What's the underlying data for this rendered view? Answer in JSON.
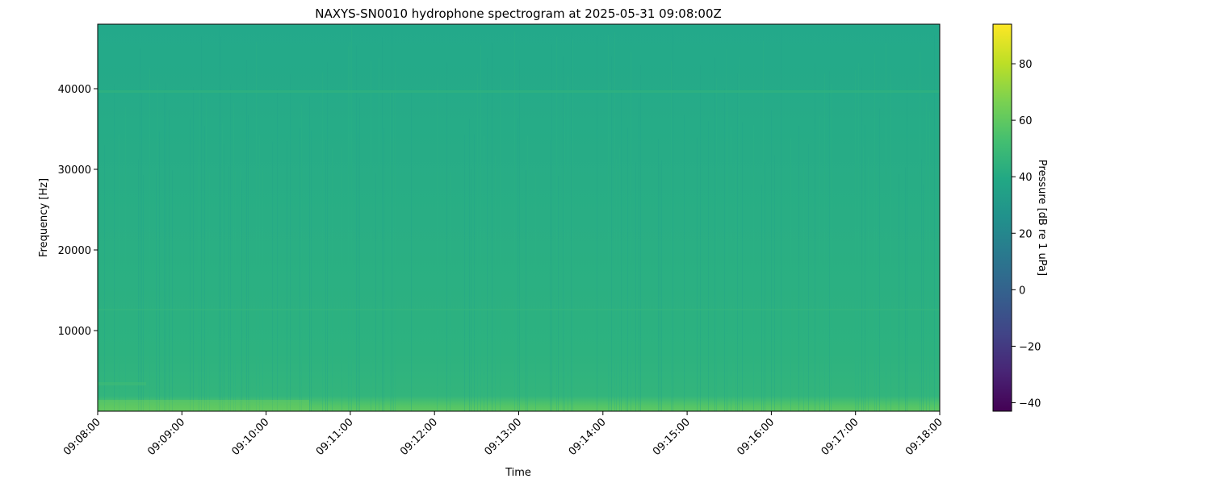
{
  "chart_data": {
    "type": "heatmap",
    "title": "NAXYS-SN0010 hydrophone spectrogram at 2025-05-31 09:08:00Z",
    "xlabel": "Time",
    "ylabel": "Frequency [Hz]",
    "x_ticks": [
      "09:08:00",
      "09:09:00",
      "09:10:00",
      "09:11:00",
      "09:12:00",
      "09:13:00",
      "09:14:00",
      "09:15:00",
      "09:16:00",
      "09:17:00",
      "09:18:00"
    ],
    "y_ticks": [
      10000,
      20000,
      30000,
      40000
    ],
    "ylim": [
      0,
      48000
    ],
    "colorbar": {
      "label": "Pressure [dB re 1 uPa]",
      "ticks": [
        -40,
        -20,
        0,
        20,
        40,
        60,
        80
      ],
      "range": [
        -43,
        94
      ],
      "colormap": "viridis"
    },
    "description_levels": {
      "background_db": 45,
      "low_freq_band_db": 60,
      "line_40khz_db": 48,
      "line_12_5khz_db": 48
    },
    "grid": false
  }
}
